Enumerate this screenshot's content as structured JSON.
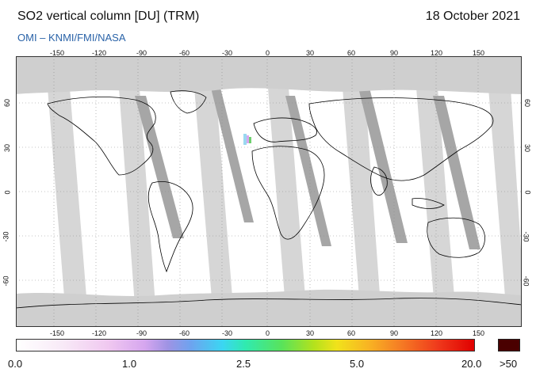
{
  "header": {
    "title": "SO2 vertical column [DU] (TRM)",
    "date": "18 October 2021",
    "credit": "OMI  –  KNMI/FMI/NASA"
  },
  "map": {
    "longitude_ticks_top": [
      "-150",
      "-120",
      "-90",
      "-60",
      "-30",
      "0",
      "30",
      "60",
      "90",
      "120",
      "150"
    ],
    "longitude_ticks_bottom": [
      "-150",
      "-120",
      "-90",
      "-60",
      "-30",
      "0",
      "30",
      "60",
      "90",
      "120",
      "150"
    ],
    "latitude_ticks_left": [
      "60",
      "30",
      "0",
      "-30",
      "-60"
    ],
    "latitude_ticks_right": [
      "60",
      "30",
      "0",
      "-30",
      "-60"
    ],
    "colors": {
      "ocean": "#ffffff",
      "no_data": "#d0d0d0",
      "swath_gap": "#a8a8a8",
      "coast": "#000000",
      "grid": "#888888"
    }
  },
  "colorbar": {
    "labels": [
      "0.0",
      "1.0",
      "2.5",
      "5.0",
      "20.0"
    ],
    "overflow_label": ">50",
    "overflow_color": "#4a0000"
  }
}
